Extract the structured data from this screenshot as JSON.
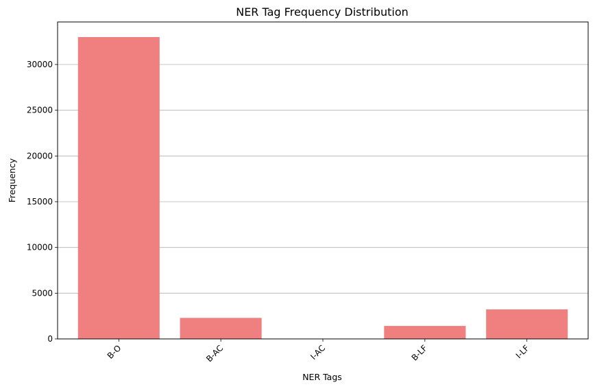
{
  "chart_data": {
    "type": "bar",
    "title": "NER Tag Frequency Distribution",
    "xlabel": "NER Tags",
    "ylabel": "Frequency",
    "categories": [
      "B-O",
      "B-AC",
      "I-AC",
      "B-LF",
      "I-LF"
    ],
    "values": [
      33000,
      2300,
      5,
      1420,
      3230
    ],
    "ylim": [
      0,
      34650
    ],
    "yticks": [
      0,
      5000,
      10000,
      15000,
      20000,
      25000,
      30000
    ],
    "ytick_labels": [
      "0",
      "5000",
      "10000",
      "15000",
      "20000",
      "25000",
      "30000"
    ],
    "grid": "y",
    "bar_color": "#f08080"
  }
}
